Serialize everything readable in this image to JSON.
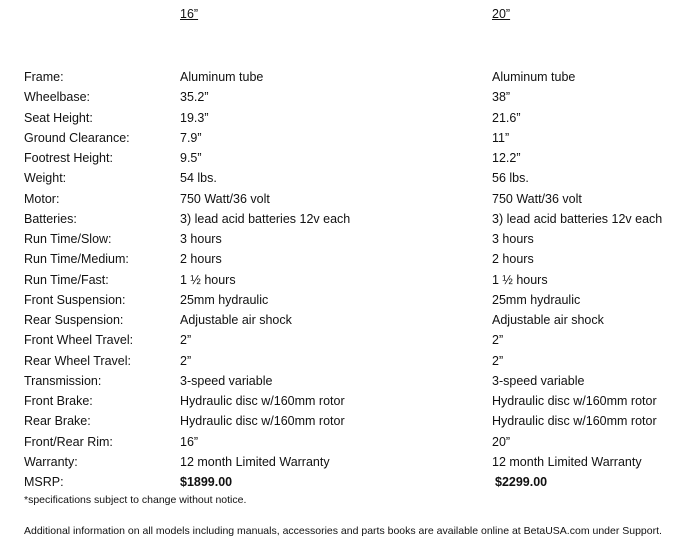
{
  "table": {
    "columns": [
      "16”",
      "20”"
    ],
    "rows": [
      [
        "Frame:",
        "Aluminum tube",
        "Aluminum tube"
      ],
      [
        "Wheelbase:",
        "35.2”",
        "38”"
      ],
      [
        "Seat Height:",
        "19.3”",
        "21.6”"
      ],
      [
        "Ground Clearance:",
        "7.9”",
        "11”"
      ],
      [
        "Footrest Height:",
        "9.5”",
        "12.2”"
      ],
      [
        "Weight:",
        "54 lbs.",
        "56 lbs."
      ],
      [
        "Motor:",
        "750 Watt/36 volt",
        "750 Watt/36 volt"
      ],
      [
        "Batteries:",
        "3) lead acid batteries 12v each",
        "3) lead acid batteries 12v each"
      ],
      [
        "Run Time/Slow:",
        "3 hours",
        "3 hours"
      ],
      [
        "Run Time/Medium:",
        "2 hours",
        "2 hours"
      ],
      [
        "Run Time/Fast:",
        "1 ½ hours",
        "1 ½ hours"
      ],
      [
        "Front Suspension:",
        "25mm hydraulic",
        "25mm hydraulic"
      ],
      [
        "Rear Suspension:",
        "Adjustable air shock",
        "Adjustable air shock"
      ],
      [
        "Front Wheel Travel:",
        "2”",
        "2”"
      ],
      [
        "Rear Wheel Travel:",
        "2”",
        "2”"
      ],
      [
        "Transmission:",
        "3-speed variable",
        "3-speed variable"
      ],
      [
        "Front Brake:",
        "Hydraulic disc w/160mm rotor",
        "Hydraulic disc w/160mm rotor"
      ],
      [
        "Rear Brake:",
        "Hydraulic disc w/160mm rotor",
        "Hydraulic disc w/160mm rotor"
      ],
      [
        "Front/Rear Rim:",
        "16”",
        "20”"
      ],
      [
        "Warranty:",
        "12 month Limited Warranty",
        "12 month Limited Warranty"
      ],
      [
        "MSRP:",
        "$1899.00",
        "$2299.00"
      ]
    ]
  },
  "footnote": "*specifications subject to change without notice.",
  "additional_info": "Additional information on all models including manuals, accessories and parts books are available online at BetaUSA.com under Support."
}
